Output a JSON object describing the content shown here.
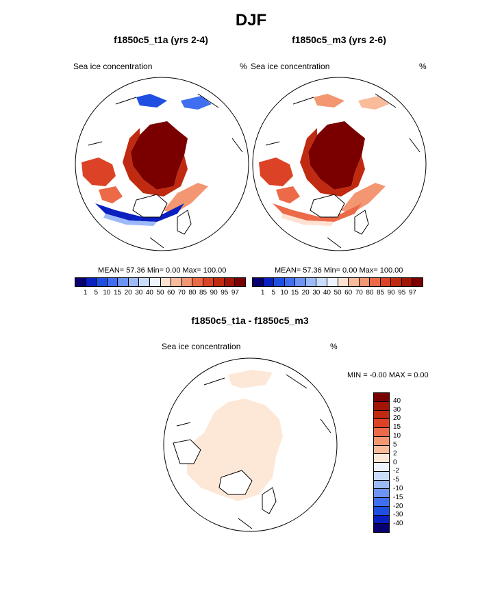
{
  "season": "DJF",
  "panels": [
    {
      "title": "f1850c5_t1a (yrs 2-4)",
      "left_label": "Sea ice concentration",
      "right_label": "%",
      "stats": "MEAN=  57.36  Min=   0.00  Max= 100.00"
    },
    {
      "title": "f1850c5_m3 (yrs 2-6)",
      "left_label": "Sea ice concentration",
      "right_label": "%",
      "stats": "MEAN=  57.36  Min=   0.00  Max= 100.00"
    }
  ],
  "diff_panel": {
    "title": "f1850c5_t1a - f1850c5_m3",
    "left_label": "Sea ice concentration",
    "right_label": "%",
    "stats": "MIN =  -0.00 MAX =   0.00"
  },
  "chart_data": [
    {
      "type": "heatmap",
      "title": "f1850c5_t1a (yrs 2-4)",
      "variable": "Sea ice concentration",
      "units": "%",
      "projection": "north polar stereographic",
      "mean": 57.36,
      "min": 0.0,
      "max": 100.0,
      "colorbar_levels": [
        "1",
        "5",
        "10",
        "15",
        "20",
        "30",
        "40",
        "50",
        "60",
        "70",
        "80",
        "85",
        "90",
        "95",
        "97"
      ]
    },
    {
      "type": "heatmap",
      "title": "f1850c5_m3 (yrs 2-6)",
      "variable": "Sea ice concentration",
      "units": "%",
      "projection": "north polar stereographic",
      "mean": 57.36,
      "min": 0.0,
      "max": 100.0,
      "colorbar_levels": [
        "1",
        "5",
        "10",
        "15",
        "20",
        "30",
        "40",
        "50",
        "60",
        "70",
        "80",
        "85",
        "90",
        "95",
        "97"
      ]
    },
    {
      "type": "heatmap",
      "title": "f1850c5_t1a - f1850c5_m3",
      "variable": "Sea ice concentration",
      "units": "%",
      "projection": "north polar stereographic",
      "min": -0.0,
      "max": 0.0,
      "colorbar_levels": [
        "-40",
        "-30",
        "-20",
        "-15",
        "-10",
        "-5",
        "-2",
        "0",
        "2",
        "5",
        "10",
        "15",
        "20",
        "30",
        "40"
      ]
    }
  ],
  "colors": {
    "abs_scale": [
      "#08006f",
      "#0a1fbf",
      "#1f4fe0",
      "#3f6ff0",
      "#6d93f5",
      "#9dbaf8",
      "#c9dcfb",
      "#eef4fe",
      "#fde2d2",
      "#f9bb9a",
      "#f39672",
      "#ec6a48",
      "#dc4326",
      "#c02a10",
      "#a11406",
      "#7a0000"
    ],
    "diff_scale": [
      "#08006f",
      "#0a1fbf",
      "#1f4fe0",
      "#3f6ff0",
      "#6d93f5",
      "#9dbaf8",
      "#c9dcfb",
      "#eef4fe",
      "#fde8d8",
      "#f9bb9a",
      "#f39672",
      "#ec6a48",
      "#dc4326",
      "#c02a10",
      "#a11406",
      "#7a0000"
    ]
  }
}
